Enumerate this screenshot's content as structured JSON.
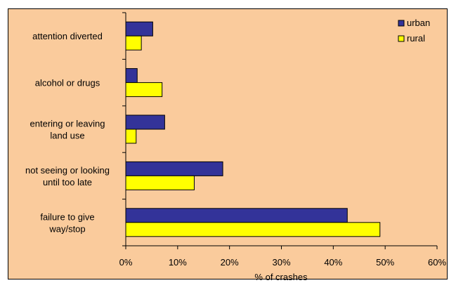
{
  "chart_data": {
    "type": "bar",
    "orientation": "horizontal",
    "categories": [
      [
        "attention diverted"
      ],
      [
        "alcohol or drugs"
      ],
      [
        "entering or leaving",
        "land use"
      ],
      [
        "not seeing or looking",
        "until too late"
      ],
      [
        "failure to give",
        "way/stop"
      ]
    ],
    "series": [
      {
        "name": "urban",
        "color": "#333399",
        "values": [
          5.2,
          2.2,
          7.5,
          18.7,
          42.7
        ]
      },
      {
        "name": "rural",
        "color": "#FFFF00",
        "values": [
          3.0,
          7.0,
          2.0,
          13.2,
          49.0
        ]
      }
    ],
    "xlabel": "% of crashes",
    "xlim": [
      0,
      60
    ],
    "xticks": [
      "0%",
      "10%",
      "20%",
      "30%",
      "40%",
      "50%",
      "60%"
    ],
    "grid": false,
    "legend": "top-right",
    "background": "#FACB9C"
  }
}
